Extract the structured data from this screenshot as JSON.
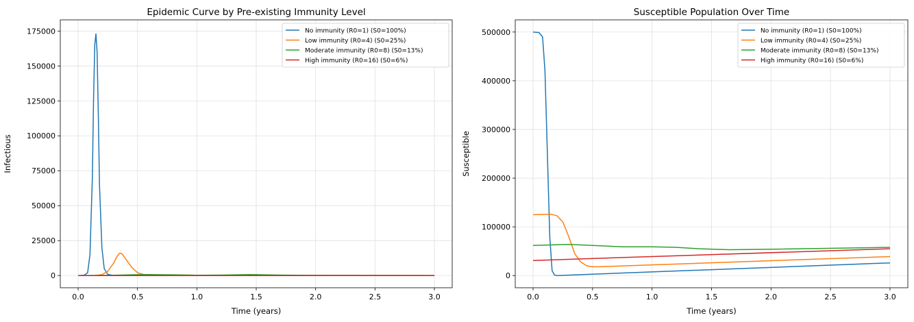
{
  "chart_data": [
    {
      "type": "line",
      "title": "Epidemic Curve by Pre-existing Immunity Level",
      "xlabel": "Time (years)",
      "ylabel": "Infectious",
      "xlim": [
        -0.15,
        3.15
      ],
      "ylim": [
        -8750,
        183000
      ],
      "xticks": [
        "0.0",
        "0.5",
        "1.0",
        "1.5",
        "2.0",
        "2.5",
        "3.0"
      ],
      "yticks": [
        "0",
        "25000",
        "50000",
        "75000",
        "100000",
        "125000",
        "150000",
        "175000"
      ],
      "grid": true,
      "legend_position": "top-right",
      "series": [
        {
          "name": "No immunity (R0=1) (S0=100%)",
          "color": "#1f77b4",
          "x": [
            0,
            0.05,
            0.08,
            0.1,
            0.12,
            0.13,
            0.14,
            0.15,
            0.16,
            0.17,
            0.18,
            0.2,
            0.22,
            0.25,
            0.3,
            3.0
          ],
          "y": [
            0,
            200,
            2000,
            15000,
            70000,
            125000,
            165000,
            173000,
            160000,
            115000,
            65000,
            20000,
            5000,
            800,
            50,
            0
          ]
        },
        {
          "name": "Low immunity (R0=4) (S0=25%)",
          "color": "#ff7f0e",
          "x": [
            0,
            0.15,
            0.2,
            0.25,
            0.3,
            0.33,
            0.35,
            0.37,
            0.4,
            0.45,
            0.5,
            0.55,
            0.6,
            1.0,
            3.0
          ],
          "y": [
            0,
            100,
            600,
            3000,
            9000,
            14000,
            16000,
            15500,
            12000,
            6000,
            2000,
            800,
            500,
            200,
            100
          ]
        },
        {
          "name": "Moderate immunity (R0=8) (S0=13%)",
          "color": "#2ca02c",
          "x": [
            0,
            0.3,
            0.5,
            0.6,
            0.8,
            1.0,
            1.2,
            1.45,
            1.7,
            2.0,
            3.0
          ],
          "y": [
            0,
            200,
            600,
            700,
            500,
            200,
            300,
            700,
            300,
            100,
            50
          ]
        },
        {
          "name": "High immunity (R0=16) (S0=6%)",
          "color": "#d62728",
          "x": [
            0,
            3.0
          ],
          "y": [
            0,
            0
          ]
        }
      ]
    },
    {
      "type": "line",
      "title": "Susceptible Population Over Time",
      "xlabel": "Time (years)",
      "ylabel": "Susceptible",
      "xlim": [
        -0.15,
        3.15
      ],
      "ylim": [
        -25000,
        525000
      ],
      "xticks": [
        "0.0",
        "0.5",
        "1.0",
        "1.5",
        "2.0",
        "2.5",
        "3.0"
      ],
      "yticks": [
        "0",
        "100000",
        "200000",
        "300000",
        "400000",
        "500000"
      ],
      "grid": true,
      "legend_position": "top-right",
      "series": [
        {
          "name": "No immunity (R0=1) (S0=100%)",
          "color": "#1f77b4",
          "x": [
            0,
            0.05,
            0.08,
            0.1,
            0.12,
            0.14,
            0.16,
            0.18,
            0.2,
            3.0
          ],
          "y": [
            500000,
            499000,
            490000,
            420000,
            250000,
            80000,
            10000,
            1000,
            0,
            26000
          ]
        },
        {
          "name": "Low immunity (R0=4) (S0=25%)",
          "color": "#ff7f0e",
          "x": [
            0,
            0.15,
            0.2,
            0.25,
            0.3,
            0.35,
            0.4,
            0.45,
            0.5,
            0.55,
            1.0,
            3.0
          ],
          "y": [
            125000,
            126000,
            123000,
            110000,
            80000,
            45000,
            28000,
            20000,
            18000,
            18000,
            22000,
            39000
          ]
        },
        {
          "name": "Moderate immunity (R0=8) (S0=13%)",
          "color": "#2ca02c",
          "x": [
            0,
            0.3,
            0.5,
            0.75,
            1.0,
            1.2,
            1.4,
            1.65,
            2.0,
            3.0
          ],
          "y": [
            62000,
            64000,
            62000,
            59000,
            59000,
            58000,
            55000,
            53000,
            54000,
            58000
          ]
        },
        {
          "name": "High immunity (R0=16) (S0=6%)",
          "color": "#d62728",
          "x": [
            0,
            3.0
          ],
          "y": [
            31000,
            55000
          ]
        }
      ]
    }
  ]
}
